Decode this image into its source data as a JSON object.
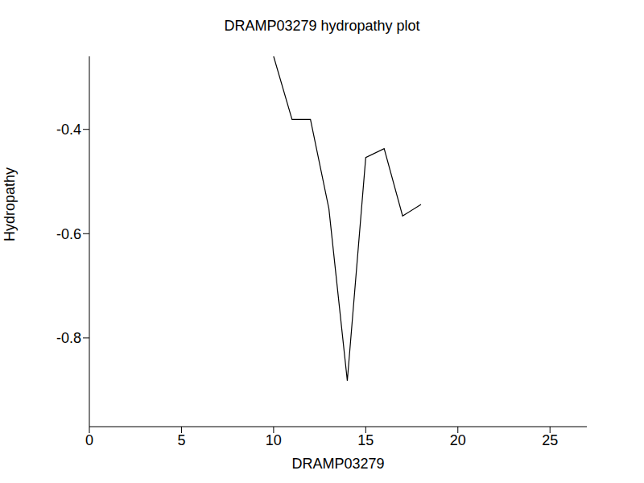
{
  "chart_data": {
    "type": "line",
    "title": "DRAMP03279 hydropathy plot",
    "x_label": "DRAMP03279",
    "y_label": "Hydropathy",
    "x": [
      10,
      11,
      12,
      13,
      14,
      15,
      16,
      17,
      18
    ],
    "values": [
      -0.26,
      -0.381,
      -0.381,
      -0.552,
      -0.882,
      -0.454,
      -0.437,
      -0.566,
      -0.544
    ],
    "color": "#000000",
    "xlim": [
      0,
      27
    ],
    "xticks": [
      0,
      5,
      10,
      15,
      20,
      25
    ],
    "ylim": [
      -0.97,
      -0.26
    ],
    "yticks": [
      -0.4,
      -0.6,
      -0.8
    ]
  }
}
